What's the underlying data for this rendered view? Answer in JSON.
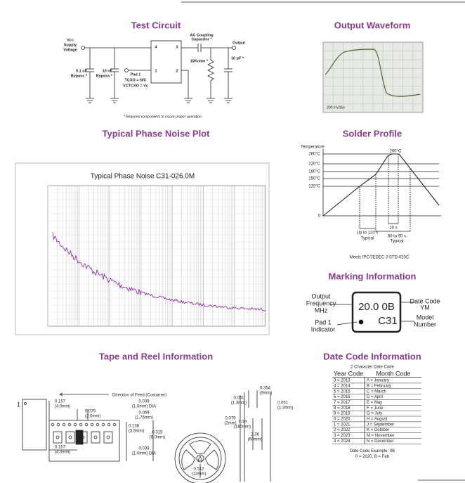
{
  "test_circuit": {
    "title": "Test Circuit",
    "vcc_label": [
      "Vcc",
      "Supply",
      "Voltage"
    ],
    "cap1": [
      "0.1 uF",
      "Bypass *"
    ],
    "cap2": [
      "10 nF",
      "Bypass *"
    ],
    "pins": [
      "4",
      "3",
      "1",
      "2"
    ],
    "pad1": [
      "Pad 1",
      "TCXO = N/C",
      "VCTCXO = Vc"
    ],
    "ac_cap": [
      "AC Coupling",
      "Capacitor *"
    ],
    "output": "Output",
    "resistor": "10Kohm *",
    "load_cap": "10 pF *",
    "footnote": "* Required components to insure proper operation."
  },
  "output_waveform": {
    "title": "Output Waveform",
    "scale": "200 mV/Div"
  },
  "phase_noise": {
    "title": "Typical Phase Noise Plot",
    "plot_title": "Typical Phase Noise C31-026.0M"
  },
  "solder_profile": {
    "title": "Solder Profile",
    "y_axis_label": "Temperature",
    "temperatures": [
      "260°C",
      "220°C",
      "180°C",
      "150°C",
      "120°C",
      "0"
    ],
    "peak": "260°C",
    "ramp": [
      "Up to 120 s",
      "Typical"
    ],
    "peak_time": "10 s",
    "reflow": [
      "60 to 90 s",
      "Typical"
    ],
    "note": "Meets IPC/JEDEC J-STD-020C"
  },
  "marking": {
    "title": "Marking Information",
    "output_frequency": [
      "Output",
      "Frequency",
      "MHz"
    ],
    "pad1": [
      "Pad 1",
      "Indicator"
    ],
    "frequency_code": "20.0 0B",
    "model": "C31",
    "date_code": [
      "Date Code",
      "YM"
    ],
    "model_number": [
      "Model",
      "Number"
    ]
  },
  "tape_reel": {
    "title": "Tape and Reel Information",
    "feed": "Direction of Feed (Customer)",
    "pin": "1",
    "dims": [
      [
        "0.157",
        "(4.0mm)"
      ],
      [
        "0.079",
        "(2.0mm)"
      ],
      [
        "0.039",
        "(1.0mm) DIA"
      ],
      [
        "0.069",
        "(1.75mm)"
      ],
      [
        "0.138",
        "(3.5mm)"
      ],
      [
        "0.315",
        "(8.0mm)"
      ],
      [
        "0.157",
        "(4.0mm)"
      ],
      [
        "0.039",
        "(1.0mm) DIA"
      ],
      [
        "0.079",
        "(2mm)"
      ],
      [
        "7.09",
        "(180mm)"
      ],
      [
        "0.512",
        "(13mm)"
      ],
      [
        "0.354",
        "(9mm)"
      ],
      [
        "0.051",
        "(1.3mm)"
      ],
      [
        "0.051",
        "(1.3mm)"
      ],
      [
        "2.36",
        "(60mm)"
      ]
    ]
  },
  "date_code": {
    "title": "Date Code Information",
    "subtitle": "2 Character Date Code",
    "header": [
      "Year Code",
      "Month Code"
    ],
    "rows": [
      [
        "3 = 2013",
        "A = January"
      ],
      [
        "4 = 2014",
        "B = February"
      ],
      [
        "5 = 2015",
        "C = March"
      ],
      [
        "6 = 2016",
        "D = April"
      ],
      [
        "7 = 2017",
        "E = May"
      ],
      [
        "8 = 2018",
        "F = June"
      ],
      [
        "9 = 2019",
        "G = July"
      ],
      [
        "0 = 2020",
        "H = August"
      ],
      [
        "1 = 2021",
        "J = September"
      ],
      [
        "2 = 2022",
        "K = October"
      ],
      [
        "3 = 2023",
        "M = November"
      ],
      [
        "4 = 2024",
        "N = December"
      ]
    ],
    "example": [
      "Date Code Example: 0B",
      "0 = 2020, B = Feb"
    ]
  }
}
